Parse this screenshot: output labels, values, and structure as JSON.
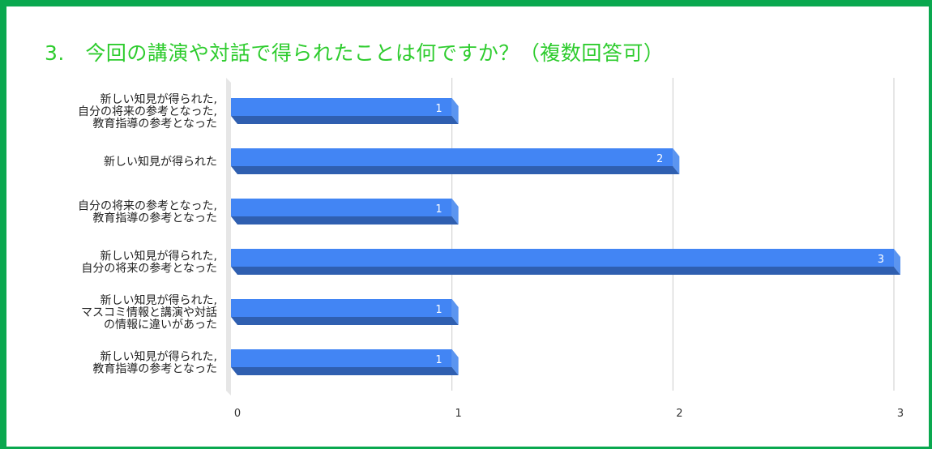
{
  "title": "3.　今回の講演や対話で得られたことは何ですか？（複数回答可）",
  "colors": {
    "frame": "#0aa84f",
    "title": "#2ecc2e",
    "bar_front": "#4285f4",
    "bar_bottom": "#2f5fb0",
    "bar_side": "#5b95f0",
    "grid": "#cccccc"
  },
  "chart_data": {
    "type": "bar",
    "orientation": "horizontal",
    "style": "3d",
    "categories": [
      [
        "新しい知見が得られた,",
        "自分の将来の参考となった,",
        "教育指導の参考となった"
      ],
      [
        "新しい知見が得られた"
      ],
      [
        "自分の将来の参考となった,",
        "教育指導の参考となった"
      ],
      [
        "新しい知見が得られた,",
        "自分の将来の参考となった"
      ],
      [
        "新しい知見が得られた,",
        "マスコミ情報と講演や対話",
        "の情報に違いがあった"
      ],
      [
        "新しい知見が得られた,",
        "教育指導の参考となった"
      ]
    ],
    "values": [
      1,
      2,
      1,
      3,
      1,
      1
    ],
    "data_labels": [
      "1",
      "2",
      "1",
      "3",
      "1",
      "1"
    ],
    "xlim": [
      0,
      3
    ],
    "xticks": [
      "0",
      "1",
      "2",
      "3"
    ],
    "grid": true,
    "legend": "none"
  }
}
